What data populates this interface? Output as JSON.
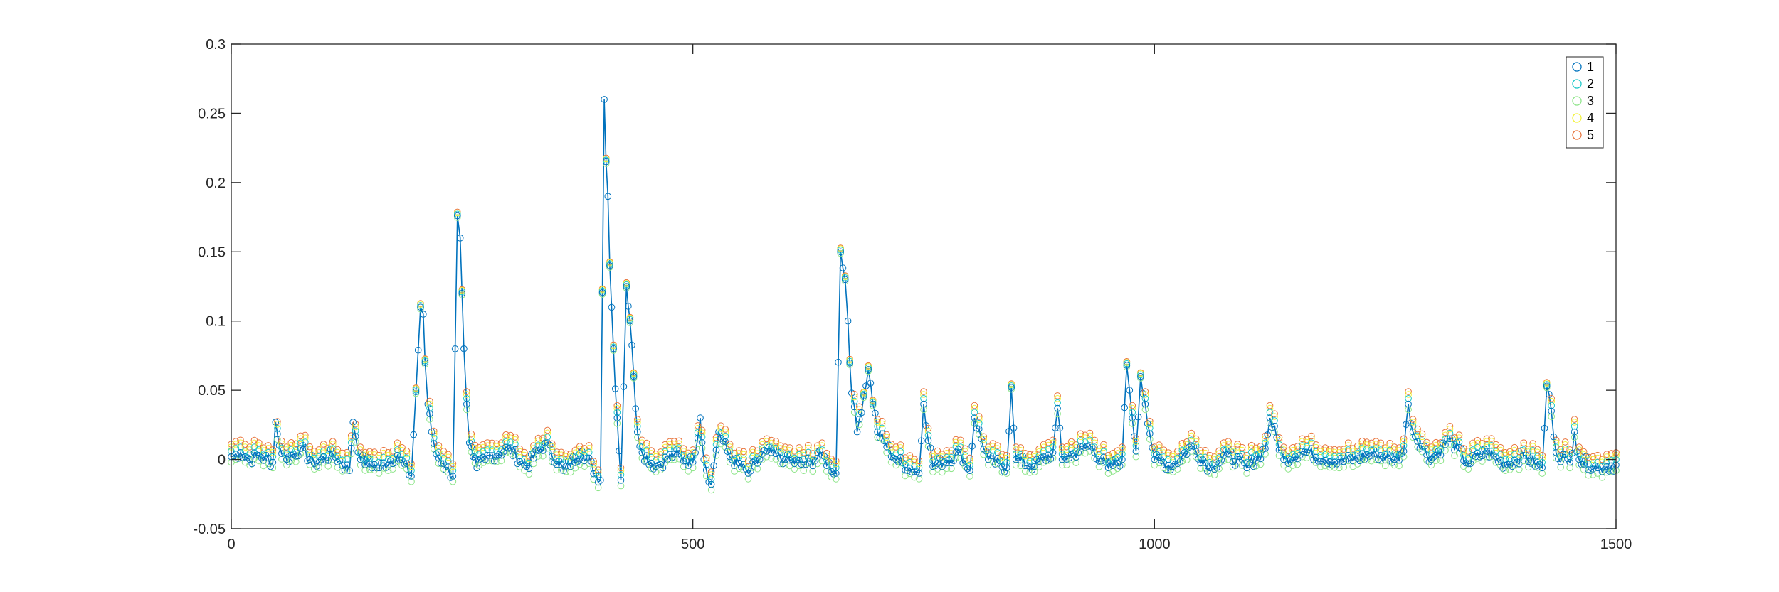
{
  "chart_data": {
    "type": "line",
    "title": "",
    "xlabel": "",
    "ylabel": "",
    "xlim": [
      0,
      1500
    ],
    "ylim": [
      -0.05,
      0.3
    ],
    "x_ticks": [
      "0",
      "500",
      "1000",
      "1500"
    ],
    "y_ticks": [
      "-0.05",
      "0",
      "0.05",
      "0.1",
      "0.15",
      "0.2",
      "0.25",
      "0.3"
    ],
    "grid": false,
    "legend_position": "top-right",
    "legend": [
      "1",
      "2",
      "3",
      "4",
      "5"
    ],
    "marker": "circle",
    "colors": {
      "line": "#0072BD",
      "marker_1": "#0072BD",
      "marker_2": "#1CC8C8",
      "marker_3": "#8EE58A",
      "marker_4": "#F2F23A",
      "marker_5": "#E8743C",
      "axis": "#262626"
    },
    "series": [
      {
        "name": "",
        "x": [
          0,
          10,
          20,
          30,
          45,
          48,
          52,
          60,
          75,
          90,
          110,
          128,
          132,
          140,
          160,
          180,
          195,
          205,
          208,
          210,
          213,
          217,
          222,
          230,
          240,
          245,
          248,
          250,
          252,
          255,
          258,
          262,
          266,
          275,
          300,
          320,
          340,
          360,
          380,
          400,
          404,
          406,
          408,
          410,
          414,
          418,
          422,
          428,
          432,
          436,
          440,
          445,
          460,
          480,
          500,
          508,
          512,
          520,
          528,
          540,
          560,
          580,
          600,
          620,
          640,
          655,
          660,
          665,
          668,
          672,
          678,
          690,
          700,
          720,
          745,
          750,
          760,
          790,
          800,
          805,
          820,
          840,
          845,
          850,
          870,
          890,
          895,
          900,
          930,
          950,
          965,
          970,
          973,
          976,
          980,
          985,
          990,
          1000,
          1020,
          1040,
          1060,
          1080,
          1100,
          1120,
          1125,
          1140,
          1160,
          1200,
          1240,
          1260,
          1270,
          1275,
          1280,
          1300,
          1320,
          1340,
          1360,
          1380,
          1400,
          1420,
          1425,
          1430,
          1435,
          1450,
          1455,
          1460,
          1480,
          1500
        ],
        "y": [
          0.002,
          0.005,
          0.0,
          0.003,
          -0.002,
          0.027,
          0.01,
          0.0,
          0.008,
          -0.003,
          0.004,
          -0.008,
          0.027,
          0.0,
          -0.006,
          0.003,
          -0.012,
          0.11,
          0.105,
          0.07,
          0.04,
          0.02,
          0.004,
          -0.003,
          -0.012,
          0.176,
          0.16,
          0.12,
          0.08,
          0.04,
          0.012,
          0.002,
          -0.006,
          0.0,
          0.008,
          -0.005,
          0.012,
          -0.008,
          0.006,
          -0.015,
          0.26,
          0.215,
          0.19,
          0.14,
          0.08,
          0.03,
          -0.015,
          0.125,
          0.1,
          0.06,
          0.02,
          0.005,
          -0.005,
          0.004,
          -0.002,
          0.03,
          0.0,
          -0.018,
          0.02,
          0.002,
          -0.01,
          0.006,
          0.0,
          -0.004,
          0.003,
          -0.01,
          0.15,
          0.13,
          0.1,
          0.048,
          0.02,
          0.065,
          0.02,
          0.0,
          -0.01,
          0.04,
          -0.005,
          0.005,
          -0.008,
          0.03,
          0.0,
          -0.006,
          0.052,
          0.0,
          -0.005,
          0.005,
          0.037,
          0.0,
          0.01,
          -0.006,
          0.0,
          0.068,
          0.05,
          0.03,
          0.006,
          0.06,
          0.04,
          0.0,
          -0.005,
          0.01,
          -0.006,
          0.004,
          -0.006,
          0.008,
          0.03,
          0.0,
          0.006,
          -0.002,
          0.004,
          0.0,
          0.006,
          0.04,
          0.02,
          0.0,
          0.015,
          -0.003,
          0.006,
          -0.004,
          0.003,
          -0.006,
          0.053,
          0.035,
          0.005,
          -0.002,
          0.02,
          0.0,
          -0.006,
          -0.004
        ]
      }
    ]
  }
}
